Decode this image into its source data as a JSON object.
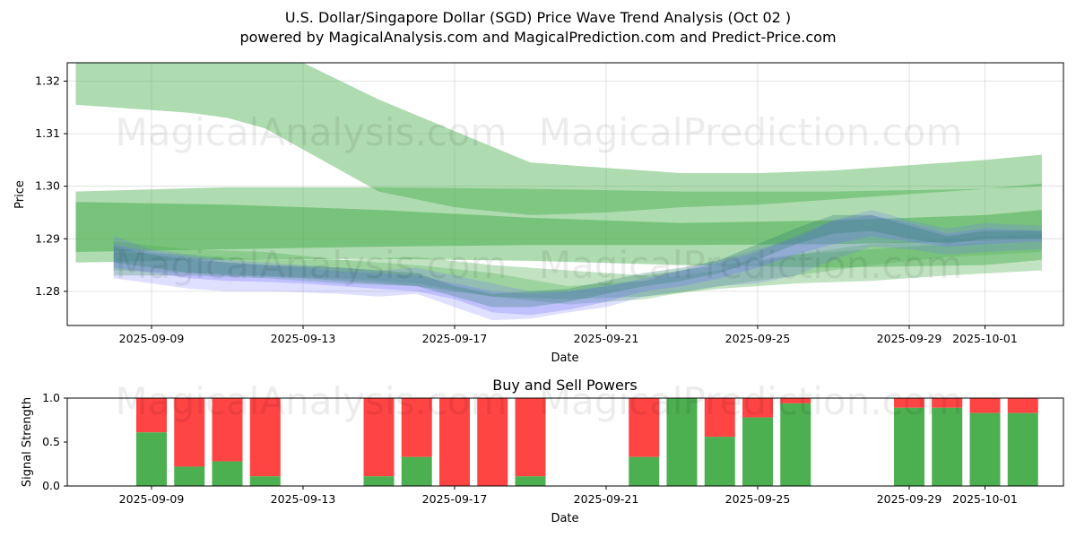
{
  "header": {
    "title_line1": "U.S. Dollar/Singapore Dollar (SGD) Price Wave Trend Analysis (Oct 02 )",
    "title_line2": "powered by MagicalAnalysis.com and MagicalPrediction.com and Predict-Price.com"
  },
  "watermarks": {
    "left": "MagicalAnalysis.com",
    "right": "MagicalPrediction.com"
  },
  "colors": {
    "green_band": "#4caf50",
    "blue_band": "#6f6fff",
    "teal_band": "#2e7d6e",
    "buy": "#4caf50",
    "sell": "#ff4444"
  },
  "chart_data": [
    {
      "type": "area",
      "name": "price-wave-chart",
      "title": "",
      "xlabel": "Date",
      "ylabel": "Price",
      "x_start": "2025-09-07",
      "xlim_days": [
        -0.25,
        26.1
      ],
      "ylim": [
        1.2735,
        1.3235
      ],
      "yticks": [
        1.28,
        1.29,
        1.3,
        1.31,
        1.32
      ],
      "ytick_labels": [
        "1.28",
        "1.29",
        "1.30",
        "1.31",
        "1.32"
      ],
      "xtick_days": [
        2,
        6,
        10,
        14,
        18,
        22,
        26,
        30
      ],
      "xtick_labels": [
        "2025-09-09",
        "2025-09-13",
        "2025-09-17",
        "2025-09-21",
        "2025-09-25",
        "2025-09-29",
        "2025-10-01"
      ],
      "xtick_label_days": [
        2,
        6,
        10,
        14,
        18,
        22,
        24
      ],
      "grid": true,
      "bands": [
        {
          "name": "long-wave-upper",
          "color": "green",
          "opacity": 0.45,
          "x": [
            0,
            1,
            2,
            3,
            4,
            4.5,
            5,
            6,
            8,
            10,
            12,
            14,
            16,
            18,
            20,
            22,
            24,
            25.5
          ],
          "upper": [
            1.3235,
            1.3235,
            1.3235,
            1.3235,
            1.3235,
            1.3235,
            1.3235,
            1.3235,
            1.3165,
            1.3105,
            1.3045,
            1.3035,
            1.3025,
            1.3025,
            1.303,
            1.304,
            1.305,
            1.306
          ],
          "lower": [
            1.3155,
            1.315,
            1.3145,
            1.314,
            1.313,
            1.312,
            1.311,
            1.307,
            1.299,
            1.296,
            1.2945,
            1.295,
            1.296,
            1.2965,
            1.2975,
            1.2985,
            1.2995,
            1.3
          ]
        },
        {
          "name": "mid-wave-1",
          "color": "green",
          "opacity": 0.45,
          "x": [
            0,
            4,
            8,
            12,
            16,
            20,
            24,
            25.5
          ],
          "upper": [
            1.299,
            1.2998,
            1.2998,
            1.2995,
            1.299,
            1.299,
            1.2995,
            1.3005
          ],
          "lower": [
            1.2855,
            1.286,
            1.2862,
            1.2858,
            1.285,
            1.2845,
            1.285,
            1.286
          ]
        },
        {
          "name": "mid-wave-2",
          "color": "green",
          "opacity": 0.55,
          "x": [
            0,
            4,
            8,
            12,
            16,
            20,
            24,
            25.5
          ],
          "upper": [
            1.297,
            1.2965,
            1.2955,
            1.294,
            1.293,
            1.2935,
            1.2945,
            1.2955
          ],
          "lower": [
            1.2875,
            1.288,
            1.2885,
            1.2888,
            1.2888,
            1.289,
            1.2895,
            1.29
          ]
        },
        {
          "name": "short-wave-green-1",
          "color": "green",
          "opacity": 0.35,
          "x": [
            1,
            3,
            5,
            7,
            9,
            11,
            13,
            15,
            17,
            19,
            21,
            23,
            25.5
          ],
          "upper": [
            1.2895,
            1.288,
            1.2875,
            1.286,
            1.2865,
            1.285,
            1.284,
            1.283,
            1.285,
            1.287,
            1.288,
            1.289,
            1.29
          ],
          "lower": [
            1.283,
            1.283,
            1.2825,
            1.2815,
            1.281,
            1.279,
            1.2785,
            1.279,
            1.2805,
            1.2815,
            1.282,
            1.283,
            1.284
          ]
        },
        {
          "name": "short-wave-green-2",
          "color": "green",
          "opacity": 0.3,
          "x": [
            1,
            3,
            5,
            7,
            9,
            11,
            13,
            15,
            17,
            19,
            21,
            23,
            25.5
          ],
          "upper": [
            1.2875,
            1.287,
            1.286,
            1.286,
            1.285,
            1.2835,
            1.281,
            1.282,
            1.284,
            1.287,
            1.289,
            1.29,
            1.291
          ],
          "lower": [
            1.284,
            1.2835,
            1.283,
            1.2825,
            1.2815,
            1.279,
            1.2775,
            1.2785,
            1.281,
            1.283,
            1.285,
            1.2865,
            1.2875
          ]
        },
        {
          "name": "short-wave-blue-1",
          "color": "blue",
          "opacity": 0.22,
          "x": [
            1,
            2,
            3,
            4,
            5,
            6,
            7,
            8,
            9,
            10,
            11,
            12,
            13,
            14,
            15,
            16,
            17,
            18,
            19,
            20,
            21,
            22,
            23,
            24,
            25.5
          ],
          "upper": [
            1.2905,
            1.288,
            1.287,
            1.286,
            1.2855,
            1.285,
            1.2845,
            1.284,
            1.2845,
            1.283,
            1.2815,
            1.28,
            1.28,
            1.281,
            1.282,
            1.284,
            1.286,
            1.288,
            1.29,
            1.2935,
            1.2955,
            1.2935,
            1.292,
            1.293,
            1.2925
          ],
          "lower": [
            1.2825,
            1.2815,
            1.2805,
            1.28,
            1.28,
            1.2798,
            1.2795,
            1.279,
            1.2795,
            1.277,
            1.2745,
            1.2748,
            1.276,
            1.277,
            1.279,
            1.28,
            1.281,
            1.2815,
            1.283,
            1.286,
            1.2885,
            1.288,
            1.287,
            1.2875,
            1.288
          ]
        },
        {
          "name": "short-wave-blue-2",
          "color": "blue",
          "opacity": 0.28,
          "x": [
            1,
            2,
            3,
            4,
            5,
            6,
            7,
            8,
            9,
            10,
            11,
            12,
            13,
            14,
            15,
            16,
            17,
            18,
            19,
            20,
            21,
            22,
            23,
            24,
            25.5
          ],
          "upper": [
            1.289,
            1.2875,
            1.2865,
            1.2855,
            1.285,
            1.2845,
            1.2838,
            1.2835,
            1.283,
            1.2815,
            1.28,
            1.2795,
            1.28,
            1.281,
            1.2825,
            1.284,
            1.2855,
            1.2875,
            1.2905,
            1.2935,
            1.2945,
            1.293,
            1.291,
            1.292,
            1.2915
          ],
          "lower": [
            1.2845,
            1.2835,
            1.2825,
            1.282,
            1.2818,
            1.2815,
            1.281,
            1.2805,
            1.28,
            1.2785,
            1.276,
            1.2755,
            1.2765,
            1.278,
            1.28,
            1.281,
            1.2825,
            1.2845,
            1.287,
            1.289,
            1.2905,
            1.2895,
            1.2885,
            1.289,
            1.2895
          ]
        },
        {
          "name": "short-wave-teal",
          "color": "teal",
          "opacity": 0.3,
          "x": [
            1,
            2,
            3,
            4,
            5,
            6,
            7,
            8,
            9,
            10,
            11,
            12,
            13,
            14,
            15,
            16,
            17,
            18,
            19,
            20,
            21,
            22,
            23,
            24,
            25.5
          ],
          "upper": [
            1.2885,
            1.287,
            1.286,
            1.2855,
            1.285,
            1.2848,
            1.2845,
            1.284,
            1.2835,
            1.281,
            1.2795,
            1.28,
            1.2805,
            1.282,
            1.2835,
            1.2845,
            1.286,
            1.289,
            1.292,
            1.2945,
            1.2945,
            1.2925,
            1.2905,
            1.2915,
            1.2915
          ],
          "lower": [
            1.2855,
            1.2845,
            1.2835,
            1.283,
            1.2828,
            1.2825,
            1.282,
            1.2815,
            1.281,
            1.279,
            1.277,
            1.277,
            1.278,
            1.2795,
            1.281,
            1.282,
            1.2835,
            1.286,
            1.289,
            1.291,
            1.2915,
            1.29,
            1.289,
            1.29,
            1.29
          ]
        }
      ]
    },
    {
      "type": "bar",
      "name": "buy-sell-powers",
      "title": "Buy and Sell Powers",
      "xlabel": "Date",
      "ylabel": "Signal Strength",
      "ylim": [
        0,
        1.0
      ],
      "yticks": [
        0.0,
        0.5,
        1.0
      ],
      "ytick_labels": [
        "0.0",
        "0.5",
        "1.0"
      ],
      "xtick_labels": [
        "2025-09-09",
        "2025-09-13",
        "2025-09-17",
        "2025-09-21",
        "2025-09-25",
        "2025-09-29",
        "2025-10-01"
      ],
      "xtick_label_days": [
        2,
        6,
        10,
        14,
        18,
        22,
        24
      ],
      "series": [
        {
          "name": "Buy",
          "color": "green"
        },
        {
          "name": "Sell",
          "color": "red"
        }
      ],
      "bars": [
        {
          "day": 2,
          "buy": 0.61
        },
        {
          "day": 3,
          "buy": 0.22
        },
        {
          "day": 4,
          "buy": 0.28
        },
        {
          "day": 5,
          "buy": 0.11
        },
        {
          "day": 8,
          "buy": 0.11
        },
        {
          "day": 9,
          "buy": 0.33
        },
        {
          "day": 10,
          "buy": 0.0
        },
        {
          "day": 11,
          "buy": 0.0
        },
        {
          "day": 12,
          "buy": 0.11
        },
        {
          "day": 15,
          "buy": 0.33
        },
        {
          "day": 16,
          "buy": 1.0
        },
        {
          "day": 17,
          "buy": 0.56
        },
        {
          "day": 18,
          "buy": 0.78
        },
        {
          "day": 19,
          "buy": 0.94
        },
        {
          "day": 22,
          "buy": 0.89
        },
        {
          "day": 23,
          "buy": 0.89
        },
        {
          "day": 24,
          "buy": 0.83
        },
        {
          "day": 25,
          "buy": 0.83
        }
      ]
    }
  ]
}
